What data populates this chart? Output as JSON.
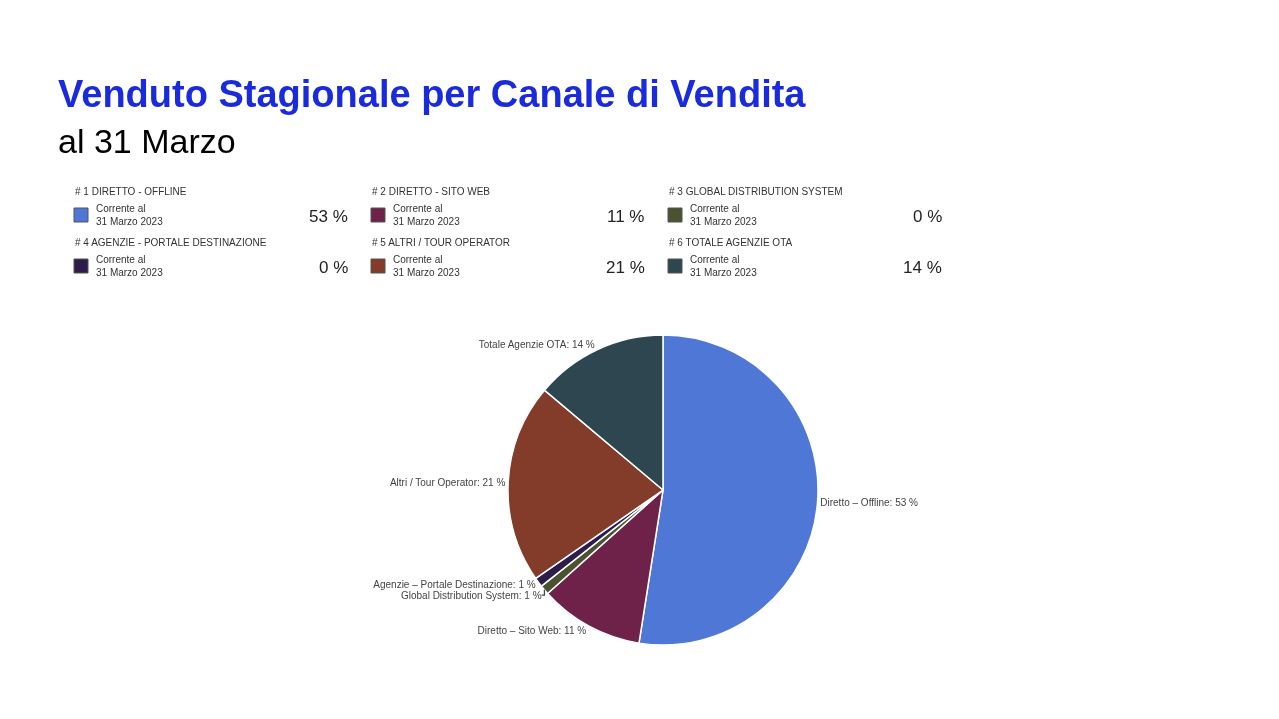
{
  "chart_data": [
    {
      "type": "other",
      "title": "Venduto Stagionale per Canale di Vendita",
      "subtitle": "al 31 Marzo",
      "categories": [
        "# 1 DIRETTO - OFFLINE",
        "# 2 DIRETTO - SITO WEB",
        "# 3 GLOBAL DISTRIBUTION SYSTEM",
        "# 4 AGENZIE - PORTALE DESTINAZIONE",
        "# 5 ALTRI / TOUR OPERATOR",
        "# 6 TOTALE AGENZIE OTA"
      ],
      "colors": [
        "#4f78d6",
        "#6e2249",
        "#4a5230",
        "#2e1d4a",
        "#833b2a",
        "#2d4650"
      ],
      "value_labels": [
        "53 %",
        "11 %",
        "0 %",
        "0 %",
        "21 %",
        "14 %"
      ],
      "annotations": [
        "Corrente al\n31 Marzo 2023",
        "Corrente al\n31 Marzo 2023",
        "Corrente al\n31 Marzo 2023",
        "Corrente al\n31 Marzo 2023",
        "Corrente al\n31 Marzo 2023",
        "Corrente al\n31 Marzo 2023"
      ]
    },
    {
      "type": "pie",
      "categories": [
        null,
        null,
        null,
        null,
        null,
        null
      ],
      "values": [
        53,
        11,
        1,
        1,
        21,
        14
      ],
      "colors": [
        "#4f78d6",
        "#6e2249",
        "#4a5230",
        "#2e1d4a",
        "#833b2a",
        "#2d4650"
      ],
      "value_labels": [
        "Diretto – Offline: 53 %",
        "Diretto – Sito Web: 11 %",
        "Global Distribution System: 1 %",
        "Agenzie – Portale Destinazione: 1 %",
        "Altri / Tour Operator: 21 %",
        "Totale Agenzie OTA: 14 %"
      ]
    }
  ]
}
